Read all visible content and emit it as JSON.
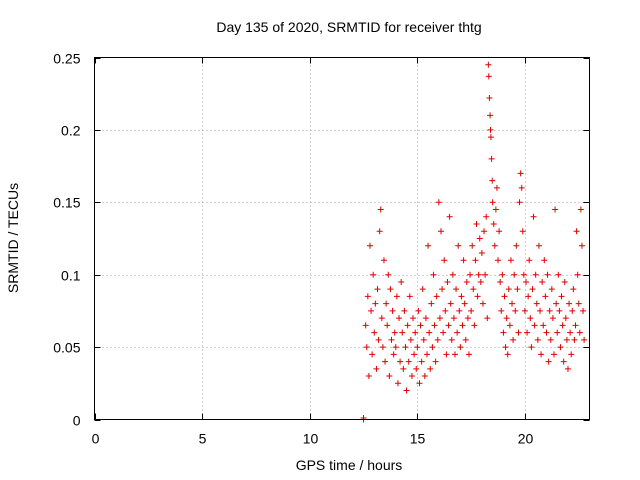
{
  "chart_data": {
    "type": "scatter",
    "title": "Day 135 of 2020, SRMTID for receiver thtg",
    "xlabel": "GPS time / hours",
    "ylabel": "SRMTID / TECUs",
    "xlim": [
      0,
      23
    ],
    "ylim": [
      0,
      0.25
    ],
    "x_ticks": [
      0,
      5,
      10,
      15,
      20
    ],
    "x_tick_labels": [
      "0",
      "5",
      "10",
      "15",
      "20"
    ],
    "y_ticks": [
      0,
      0.05,
      0.1,
      0.15,
      0.2,
      0.25
    ],
    "y_tick_labels": [
      "0",
      "0.05",
      "0.1",
      "0.15",
      "0.2",
      "0.25"
    ],
    "grid": true,
    "marker": "+",
    "color": "#e00000",
    "series": [
      {
        "name": "SRMTID",
        "points": [
          [
            12.5,
            0.0
          ],
          [
            12.5,
            0.001
          ],
          [
            12.6,
            0.065
          ],
          [
            12.65,
            0.05
          ],
          [
            12.7,
            0.085
          ],
          [
            12.75,
            0.03
          ],
          [
            12.8,
            0.12
          ],
          [
            12.85,
            0.075
          ],
          [
            12.9,
            0.045
          ],
          [
            12.95,
            0.1
          ],
          [
            13.0,
            0.06
          ],
          [
            13.05,
            0.08
          ],
          [
            13.1,
            0.035
          ],
          [
            13.15,
            0.09
          ],
          [
            13.2,
            0.055
          ],
          [
            13.25,
            0.13
          ],
          [
            13.3,
            0.145
          ],
          [
            13.35,
            0.07
          ],
          [
            13.4,
            0.05
          ],
          [
            13.45,
            0.11
          ],
          [
            13.5,
            0.04
          ],
          [
            13.55,
            0.08
          ],
          [
            13.6,
            0.065
          ],
          [
            13.65,
            0.1
          ],
          [
            13.7,
            0.03
          ],
          [
            13.75,
            0.09
          ],
          [
            13.8,
            0.055
          ],
          [
            13.85,
            0.075
          ],
          [
            13.9,
            0.045
          ],
          [
            13.95,
            0.06
          ],
          [
            14.0,
            0.05
          ],
          [
            14.05,
            0.085
          ],
          [
            14.1,
            0.025
          ],
          [
            14.15,
            0.07
          ],
          [
            14.2,
            0.04
          ],
          [
            14.25,
            0.095
          ],
          [
            14.3,
            0.06
          ],
          [
            14.35,
            0.035
          ],
          [
            14.4,
            0.075
          ],
          [
            14.45,
            0.05
          ],
          [
            14.5,
            0.02
          ],
          [
            14.55,
            0.065
          ],
          [
            14.6,
            0.04
          ],
          [
            14.65,
            0.085
          ],
          [
            14.7,
            0.055
          ],
          [
            14.75,
            0.03
          ],
          [
            14.8,
            0.07
          ],
          [
            14.85,
            0.045
          ],
          [
            14.9,
            0.06
          ],
          [
            14.95,
            0.035
          ],
          [
            15.0,
            0.05
          ],
          [
            15.05,
            0.075
          ],
          [
            15.1,
            0.025
          ],
          [
            15.15,
            0.065
          ],
          [
            15.2,
            0.04
          ],
          [
            15.25,
            0.09
          ],
          [
            15.3,
            0.055
          ],
          [
            15.35,
            0.03
          ],
          [
            15.4,
            0.07
          ],
          [
            15.45,
            0.045
          ],
          [
            15.5,
            0.12
          ],
          [
            15.55,
            0.06
          ],
          [
            15.6,
            0.035
          ],
          [
            15.65,
            0.08
          ],
          [
            15.7,
            0.05
          ],
          [
            15.75,
            0.1
          ],
          [
            15.8,
            0.065
          ],
          [
            15.85,
            0.04
          ],
          [
            15.9,
            0.085
          ],
          [
            15.95,
            0.055
          ],
          [
            16.0,
            0.15
          ],
          [
            16.05,
            0.07
          ],
          [
            16.1,
            0.13
          ],
          [
            16.15,
            0.09
          ],
          [
            16.2,
            0.06
          ],
          [
            16.25,
            0.11
          ],
          [
            16.3,
            0.075
          ],
          [
            16.35,
            0.045
          ],
          [
            16.4,
            0.095
          ],
          [
            16.45,
            0.065
          ],
          [
            16.5,
            0.14
          ],
          [
            16.55,
            0.08
          ],
          [
            16.6,
            0.055
          ],
          [
            16.65,
            0.1
          ],
          [
            16.7,
            0.07
          ],
          [
            16.75,
            0.045
          ],
          [
            16.8,
            0.09
          ],
          [
            16.85,
            0.06
          ],
          [
            16.9,
            0.12
          ],
          [
            16.95,
            0.075
          ],
          [
            17.0,
            0.05
          ],
          [
            17.05,
            0.085
          ],
          [
            17.1,
            0.065
          ],
          [
            17.15,
            0.11
          ],
          [
            17.2,
            0.08
          ],
          [
            17.25,
            0.055
          ],
          [
            17.3,
            0.095
          ],
          [
            17.35,
            0.07
          ],
          [
            17.4,
            0.045
          ],
          [
            17.45,
            0.1
          ],
          [
            17.5,
            0.075
          ],
          [
            17.55,
            0.12
          ],
          [
            17.6,
            0.09
          ],
          [
            17.65,
            0.065
          ],
          [
            17.7,
            0.11
          ],
          [
            17.75,
            0.135
          ],
          [
            17.8,
            0.085
          ],
          [
            17.85,
            0.1
          ],
          [
            17.9,
            0.125
          ],
          [
            17.95,
            0.095
          ],
          [
            18.0,
            0.115
          ],
          [
            18.05,
            0.08
          ],
          [
            18.1,
            0.13
          ],
          [
            18.15,
            0.1
          ],
          [
            18.2,
            0.14
          ],
          [
            18.25,
            0.07
          ],
          [
            18.3,
            0.245
          ],
          [
            18.32,
            0.237
          ],
          [
            18.35,
            0.222
          ],
          [
            18.38,
            0.21
          ],
          [
            18.4,
            0.2
          ],
          [
            18.42,
            0.195
          ],
          [
            18.45,
            0.18
          ],
          [
            18.48,
            0.165
          ],
          [
            18.5,
            0.15
          ],
          [
            18.55,
            0.135
          ],
          [
            18.6,
            0.12
          ],
          [
            18.65,
            0.145
          ],
          [
            18.7,
            0.16
          ],
          [
            18.75,
            0.11
          ],
          [
            18.8,
            0.13
          ],
          [
            18.85,
            0.095
          ],
          [
            18.9,
            0.075
          ],
          [
            18.95,
            0.1
          ],
          [
            19.0,
            0.06
          ],
          [
            19.05,
            0.085
          ],
          [
            19.1,
            0.05
          ],
          [
            19.15,
            0.07
          ],
          [
            19.2,
            0.045
          ],
          [
            19.25,
            0.09
          ],
          [
            19.3,
            0.065
          ],
          [
            19.35,
            0.11
          ],
          [
            19.4,
            0.08
          ],
          [
            19.45,
            0.055
          ],
          [
            19.5,
            0.1
          ],
          [
            19.55,
            0.075
          ],
          [
            19.6,
            0.12
          ],
          [
            19.65,
            0.09
          ],
          [
            19.7,
            0.06
          ],
          [
            19.75,
            0.15
          ],
          [
            19.8,
            0.17
          ],
          [
            19.85,
            0.16
          ],
          [
            19.9,
            0.13
          ],
          [
            19.95,
            0.1
          ],
          [
            20.0,
            0.075
          ],
          [
            20.05,
            0.095
          ],
          [
            20.1,
            0.06
          ],
          [
            20.15,
            0.085
          ],
          [
            20.2,
            0.11
          ],
          [
            20.25,
            0.07
          ],
          [
            20.3,
            0.05
          ],
          [
            20.35,
            0.09
          ],
          [
            20.4,
            0.14
          ],
          [
            20.45,
            0.065
          ],
          [
            20.5,
            0.1
          ],
          [
            20.55,
            0.08
          ],
          [
            20.6,
            0.055
          ],
          [
            20.65,
            0.12
          ],
          [
            20.7,
            0.075
          ],
          [
            20.75,
            0.045
          ],
          [
            20.8,
            0.095
          ],
          [
            20.85,
            0.065
          ],
          [
            20.9,
            0.11
          ],
          [
            20.95,
            0.085
          ],
          [
            21.0,
            0.06
          ],
          [
            21.05,
            0.1
          ],
          [
            21.1,
            0.04
          ],
          [
            21.15,
            0.075
          ],
          [
            21.2,
            0.055
          ],
          [
            21.25,
            0.09
          ],
          [
            21.3,
            0.07
          ],
          [
            21.35,
            0.045
          ],
          [
            21.4,
            0.145
          ],
          [
            21.45,
            0.08
          ],
          [
            21.5,
            0.06
          ],
          [
            21.55,
            0.1
          ],
          [
            21.6,
            0.075
          ],
          [
            21.65,
            0.05
          ],
          [
            21.7,
            0.085
          ],
          [
            21.75,
            0.065
          ],
          [
            21.8,
            0.04
          ],
          [
            21.85,
            0.095
          ],
          [
            21.9,
            0.07
          ],
          [
            21.95,
            0.055
          ],
          [
            22.0,
            0.035
          ],
          [
            22.05,
            0.08
          ],
          [
            22.1,
            0.06
          ],
          [
            22.15,
            0.045
          ],
          [
            22.2,
            0.075
          ],
          [
            22.25,
            0.09
          ],
          [
            22.3,
            0.055
          ],
          [
            22.35,
            0.065
          ],
          [
            22.4,
            0.13
          ],
          [
            22.45,
            0.1
          ],
          [
            22.5,
            0.08
          ],
          [
            22.55,
            0.06
          ],
          [
            22.6,
            0.145
          ],
          [
            22.65,
            0.12
          ],
          [
            22.7,
            0.075
          ],
          [
            22.75,
            0.055
          ]
        ]
      }
    ]
  }
}
